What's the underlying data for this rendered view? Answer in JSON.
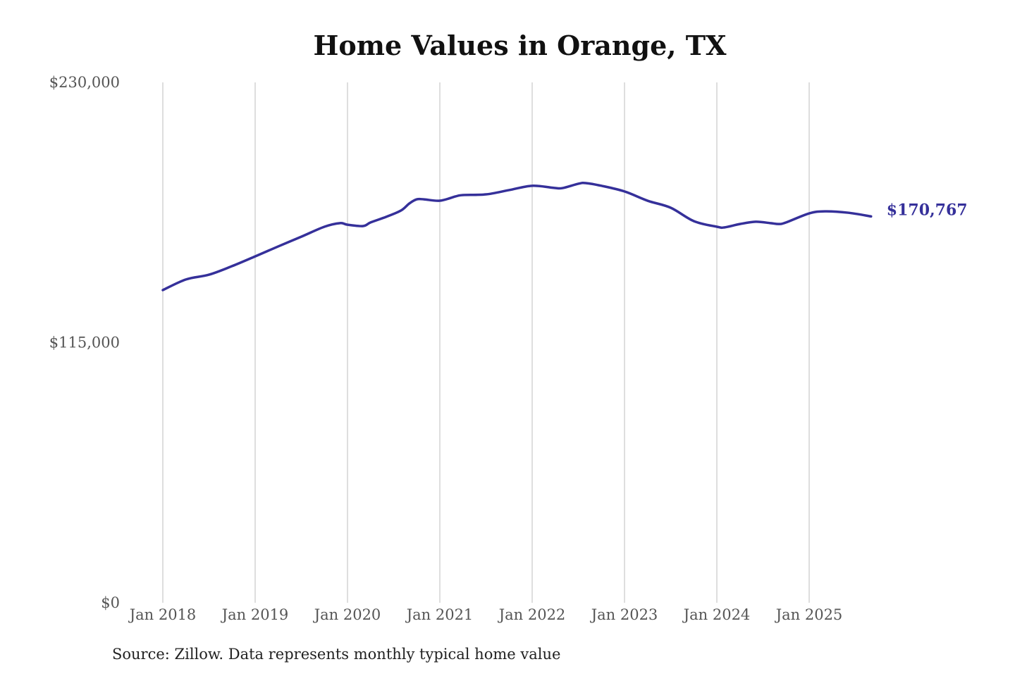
{
  "chart_data": {
    "type": "line",
    "title": "Home Values in Orange, TX",
    "source": "Source: Zillow. Data represents monthly typical home value",
    "xlabel": "",
    "ylabel": "",
    "ylim": [
      0,
      230000
    ],
    "y_ticks": [
      {
        "value": 0,
        "label": "$0"
      },
      {
        "value": 115000,
        "label": "$115,000"
      },
      {
        "value": 230000,
        "label": "$230,000"
      }
    ],
    "x_ticks": [
      {
        "value": 2018,
        "label": "Jan 2018"
      },
      {
        "value": 2019,
        "label": "Jan 2019"
      },
      {
        "value": 2020,
        "label": "Jan 2020"
      },
      {
        "value": 2021,
        "label": "Jan 2021"
      },
      {
        "value": 2022,
        "label": "Jan 2022"
      },
      {
        "value": 2023,
        "label": "Jan 2023"
      },
      {
        "value": 2024,
        "label": "Jan 2024"
      },
      {
        "value": 2025,
        "label": "Jan 2025"
      }
    ],
    "grid": "vertical",
    "line_color": "#35309a",
    "end_label": "$170,767",
    "series": [
      {
        "name": "Typical home value",
        "x": [
          2018.0,
          2018.25,
          2018.5,
          2018.75,
          2019.0,
          2019.25,
          2019.5,
          2019.75,
          2019.92,
          2020.0,
          2020.17,
          2020.25,
          2020.42,
          2020.58,
          2020.67,
          2020.75,
          2020.83,
          2021.0,
          2021.17,
          2021.25,
          2021.5,
          2021.75,
          2022.0,
          2022.25,
          2022.33,
          2022.5,
          2022.58,
          2022.75,
          2023.0,
          2023.25,
          2023.5,
          2023.75,
          2024.0,
          2024.08,
          2024.25,
          2024.42,
          2024.58,
          2024.67,
          2024.75,
          2025.0,
          2025.17,
          2025.42,
          2025.67
        ],
        "values": [
          138200,
          142900,
          145000,
          148800,
          153100,
          157500,
          161800,
          166200,
          167800,
          167100,
          166500,
          168100,
          170600,
          173400,
          176500,
          178300,
          178300,
          177700,
          179600,
          180200,
          180500,
          182400,
          184300,
          183300,
          183300,
          185200,
          185500,
          184300,
          181800,
          177700,
          174600,
          168700,
          166200,
          165900,
          167400,
          168400,
          167800,
          167400,
          168100,
          172100,
          173000,
          172400,
          170767
        ]
      }
    ]
  }
}
